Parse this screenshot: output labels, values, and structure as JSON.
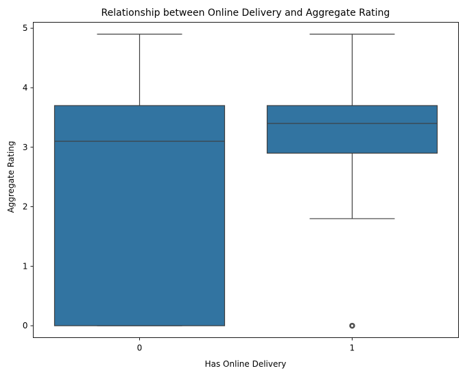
{
  "chart_data": {
    "type": "box",
    "title": "Relationship between Online Delivery and Aggregate Rating",
    "xlabel": "Has Online Delivery",
    "ylabel": "Aggregate Rating",
    "categories": [
      "0",
      "1"
    ],
    "ylim": [
      -0.2,
      5.1
    ],
    "yticks": [
      0,
      1,
      2,
      3,
      4,
      5
    ],
    "grid": false,
    "colors": {
      "box": "#3274a1",
      "line": "#3d3d3d"
    },
    "boxes": [
      {
        "category": "0",
        "whisker_low": 0.0,
        "q1": 0.0,
        "median": 3.1,
        "q3": 3.7,
        "whisker_high": 4.9,
        "outliers": []
      },
      {
        "category": "1",
        "whisker_low": 1.8,
        "q1": 2.9,
        "median": 3.4,
        "q3": 3.7,
        "whisker_high": 4.9,
        "outliers": [
          0.0
        ]
      }
    ]
  }
}
